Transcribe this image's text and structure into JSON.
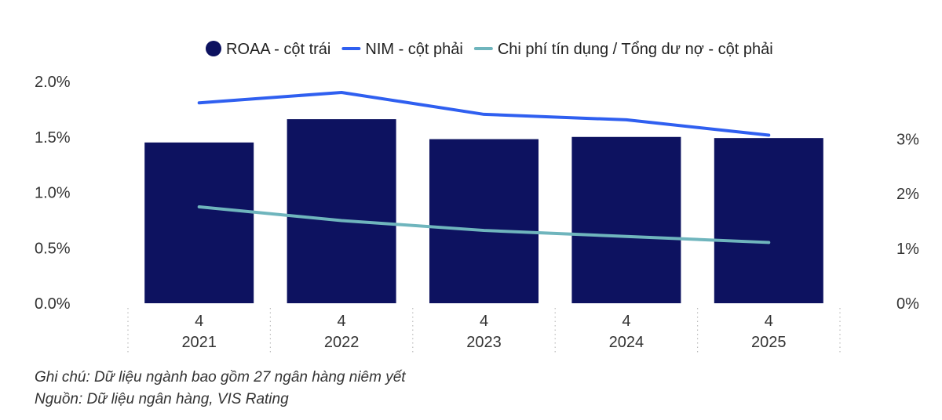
{
  "chart_data": {
    "type": "bar",
    "legend": [
      {
        "label": "ROAA - cột trái",
        "marker": "circle",
        "color": "#0d1260"
      },
      {
        "label": "NIM - cột phải",
        "marker": "line",
        "color": "#2f5ff0"
      },
      {
        "label": "Chi phí tín dụng / Tổng dư nợ - cột phải",
        "marker": "line",
        "color": "#6fb5bd"
      }
    ],
    "legend_position": "top",
    "categories": [
      {
        "quarter": "4",
        "year": "2021"
      },
      {
        "quarter": "4",
        "year": "2022"
      },
      {
        "quarter": "4",
        "year": "2023"
      },
      {
        "quarter": "4",
        "year": "2024"
      },
      {
        "quarter": "4",
        "year": "2025"
      }
    ],
    "series": [
      {
        "name": "ROAA - cột trái",
        "type": "bar",
        "axis": "left",
        "color": "#0d1260",
        "values": [
          1.45,
          1.66,
          1.48,
          1.5,
          1.49
        ]
      },
      {
        "name": "NIM - cột phải",
        "type": "line",
        "axis": "right",
        "color": "#2f5ff0",
        "values": [
          3.66,
          3.85,
          3.45,
          3.35,
          3.07
        ]
      },
      {
        "name": "Chi phí tín dụng / Tổng dư nợ - cột phải",
        "type": "line",
        "axis": "right",
        "color": "#6fb5bd",
        "values": [
          1.76,
          1.51,
          1.33,
          1.22,
          1.11
        ]
      }
    ],
    "y_left": {
      "ticks": [
        "0.0%",
        "0.5%",
        "1.0%",
        "1.5%",
        "2.0%"
      ],
      "values": [
        0,
        0.5,
        1.0,
        1.5,
        2.0
      ],
      "ylim": [
        0,
        2.0
      ]
    },
    "y_right": {
      "ticks": [
        "0%",
        "1%",
        "2%",
        "3%"
      ],
      "values": [
        0,
        1,
        2,
        3
      ],
      "ylim": [
        0,
        4.05
      ]
    },
    "grid": false
  },
  "notes": {
    "note": "Ghi chú: Dữ liệu ngành bao gồm 27 ngân hàng niêm yết",
    "source": "Nguồn: Dữ liệu ngân hàng, VIS Rating"
  }
}
